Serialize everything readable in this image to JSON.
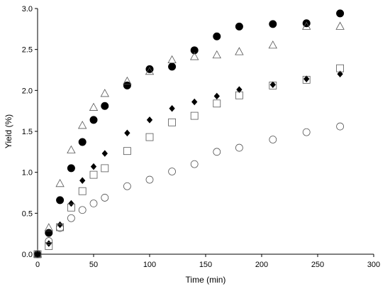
{
  "chart_data": {
    "type": "scatter",
    "xlabel": "Time (min)",
    "ylabel": "Yield (%)",
    "xlim": [
      0,
      300
    ],
    "ylim": [
      0,
      3.0
    ],
    "x_ticks": [
      "0",
      "50",
      "100",
      "150",
      "200",
      "250",
      "300"
    ],
    "y_ticks": [
      "0.0",
      "0.5",
      "1.0",
      "1.5",
      "2.0",
      "2.5",
      "3.0"
    ],
    "grid": false,
    "legend": "none",
    "series": [
      {
        "marker": "filled-circle",
        "color": "#000000",
        "points": [
          [
            0,
            0.0
          ],
          [
            10,
            0.26
          ],
          [
            20,
            0.66
          ],
          [
            30,
            1.05
          ],
          [
            40,
            1.37
          ],
          [
            50,
            1.64
          ],
          [
            60,
            1.81
          ],
          [
            80,
            2.06
          ],
          [
            100,
            2.26
          ],
          [
            120,
            2.29
          ],
          [
            140,
            2.49
          ],
          [
            160,
            2.66
          ],
          [
            180,
            2.78
          ],
          [
            210,
            2.81
          ],
          [
            240,
            2.82
          ],
          [
            270,
            2.94
          ]
        ]
      },
      {
        "marker": "open-triangle",
        "color": "#555555",
        "points": [
          [
            0,
            0.0
          ],
          [
            10,
            0.32
          ],
          [
            20,
            0.86
          ],
          [
            30,
            1.27
          ],
          [
            40,
            1.57
          ],
          [
            50,
            1.79
          ],
          [
            60,
            1.96
          ],
          [
            80,
            2.11
          ],
          [
            100,
            2.23
          ],
          [
            120,
            2.37
          ],
          [
            140,
            2.41
          ],
          [
            160,
            2.43
          ],
          [
            180,
            2.47
          ],
          [
            210,
            2.55
          ],
          [
            240,
            2.78
          ],
          [
            270,
            2.78
          ]
        ]
      },
      {
        "marker": "filled-diamond",
        "color": "#000000",
        "points": [
          [
            0,
            0.0
          ],
          [
            10,
            0.13
          ],
          [
            20,
            0.36
          ],
          [
            30,
            0.62
          ],
          [
            40,
            0.9
          ],
          [
            50,
            1.07
          ],
          [
            60,
            1.23
          ],
          [
            80,
            1.48
          ],
          [
            100,
            1.64
          ],
          [
            120,
            1.78
          ],
          [
            140,
            1.86
          ],
          [
            160,
            1.93
          ],
          [
            180,
            2.01
          ],
          [
            210,
            2.07
          ],
          [
            240,
            2.14
          ],
          [
            270,
            2.2
          ]
        ]
      },
      {
        "marker": "open-square",
        "color": "#555555",
        "points": [
          [
            0,
            0.0
          ],
          [
            10,
            0.1
          ],
          [
            20,
            0.33
          ],
          [
            30,
            0.57
          ],
          [
            40,
            0.77
          ],
          [
            50,
            0.97
          ],
          [
            60,
            1.05
          ],
          [
            80,
            1.26
          ],
          [
            100,
            1.43
          ],
          [
            120,
            1.61
          ],
          [
            140,
            1.69
          ],
          [
            160,
            1.84
          ],
          [
            180,
            1.94
          ],
          [
            210,
            2.06
          ],
          [
            240,
            2.13
          ],
          [
            270,
            2.27
          ]
        ]
      },
      {
        "marker": "open-circle",
        "color": "#555555",
        "points": [
          [
            0,
            0.0
          ],
          [
            10,
            0.16
          ],
          [
            20,
            0.32
          ],
          [
            30,
            0.44
          ],
          [
            40,
            0.54
          ],
          [
            50,
            0.62
          ],
          [
            60,
            0.69
          ],
          [
            80,
            0.83
          ],
          [
            100,
            0.91
          ],
          [
            120,
            1.01
          ],
          [
            140,
            1.1
          ],
          [
            160,
            1.25
          ],
          [
            180,
            1.3
          ],
          [
            210,
            1.4
          ],
          [
            240,
            1.49
          ],
          [
            270,
            1.56
          ]
        ]
      }
    ]
  }
}
